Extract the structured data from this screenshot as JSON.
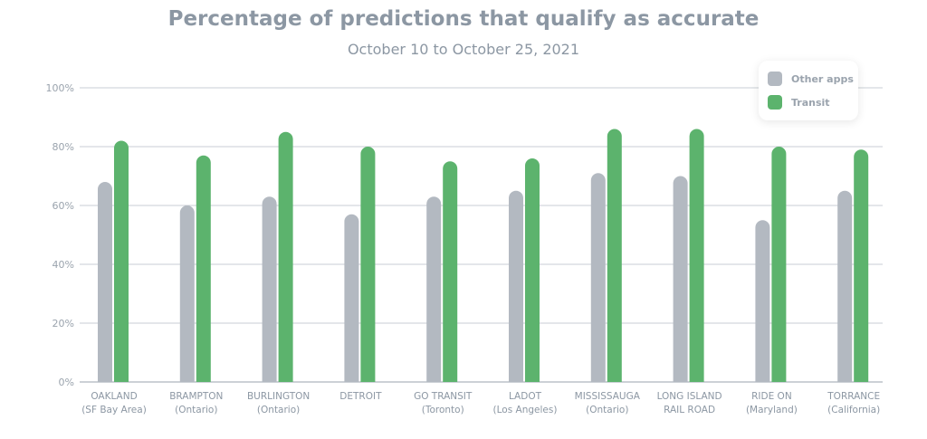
{
  "chart_data": {
    "type": "bar",
    "title": "Percentage of predictions that qualify as accurate",
    "subtitle": "October 10 to October 25, 2021",
    "categories": [
      [
        "OAKLAND",
        "(SF Bay Area)"
      ],
      [
        "BRAMPTON",
        "(Ontario)"
      ],
      [
        "BURLINGTON",
        "(Ontario)"
      ],
      [
        "DETROIT",
        ""
      ],
      [
        "GO TRANSIT",
        "(Toronto)"
      ],
      [
        "LADOT",
        "(Los Angeles)"
      ],
      [
        "MISSISSAUGA",
        "(Ontario)"
      ],
      [
        "LONG ISLAND",
        "RAIL ROAD"
      ],
      [
        "RIDE ON",
        "(Maryland)"
      ],
      [
        "TORRANCE",
        "(California)"
      ]
    ],
    "series": [
      {
        "name": "Other apps",
        "color": "#b3b9c1",
        "values": [
          68,
          60,
          63,
          57,
          63,
          65,
          71,
          70,
          55,
          65
        ]
      },
      {
        "name": "Transit",
        "color": "#5cb36d",
        "values": [
          82,
          77,
          85,
          80,
          75,
          76,
          86,
          86,
          80,
          79
        ]
      }
    ],
    "yticks": [
      "0%",
      "20%",
      "40%",
      "60%",
      "80%",
      "100%"
    ],
    "ylim": [
      0,
      100
    ],
    "grid": true,
    "legend": "top-right"
  }
}
